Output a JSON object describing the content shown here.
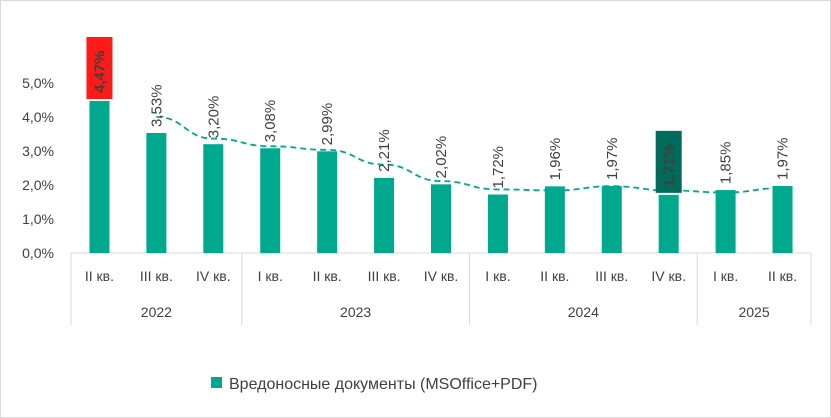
{
  "chart_data": {
    "type": "bar",
    "title": "",
    "xlabel": "",
    "ylabel": "",
    "ylim": [
      0,
      5
    ],
    "y_ticks": [
      "0,0%",
      "1,0%",
      "2,0%",
      "3,0%",
      "4,0%",
      "5,0%"
    ],
    "categories": [
      "II кв.",
      "III кв.",
      "IV кв.",
      "I кв.",
      "II кв.",
      "III кв.",
      "IV кв.",
      "I кв.",
      "II кв.",
      "III кв.",
      "IV кв.",
      "I кв.",
      "II кв."
    ],
    "year_groups": [
      {
        "label": "2022",
        "count": 3
      },
      {
        "label": "2023",
        "count": 4
      },
      {
        "label": "2024",
        "count": 4
      },
      {
        "label": "2025",
        "count": 2
      }
    ],
    "series": [
      {
        "name": "Вредоносные документы (MSOffice+PDF)",
        "values": [
          4.47,
          3.53,
          3.2,
          3.08,
          2.99,
          2.21,
          2.02,
          1.72,
          1.96,
          1.97,
          1.71,
          1.85,
          1.97
        ],
        "labels": [
          "4,47%",
          "3,53%",
          "3,20%",
          "3,08%",
          "2,99%",
          "2,21%",
          "2,02%",
          "1,72%",
          "1,96%",
          "1,97%",
          "1,71%",
          "1,85%",
          "1,97%"
        ],
        "color": "#00a88e"
      }
    ],
    "highlights": [
      {
        "index": 0,
        "color": "#ff1a1a"
      },
      {
        "index": 10,
        "color": "#006b5a"
      }
    ],
    "trendline": {
      "style": "dashed",
      "color": "#00a88e"
    },
    "grid": false,
    "legend": "bottom"
  }
}
